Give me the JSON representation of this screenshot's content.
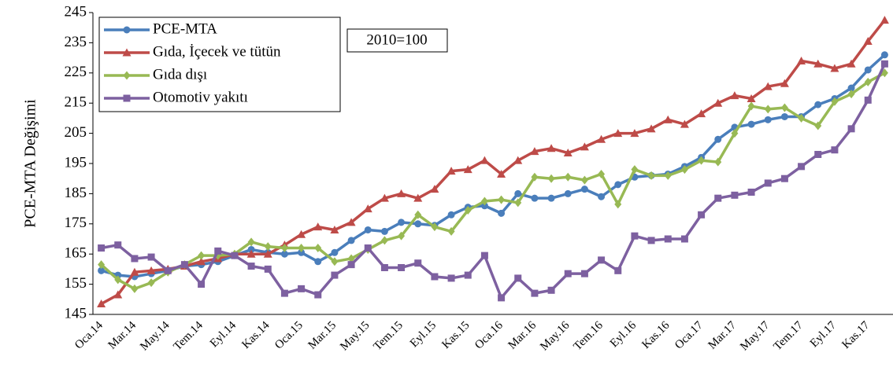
{
  "chart_data": {
    "type": "line",
    "y_label": "PCE-MTA Değişimi",
    "annotation": "2010=100",
    "categories": [
      "Oca.14",
      null,
      "Mar.14",
      null,
      "May.14",
      null,
      "Tem.14",
      null,
      "Eyl.14",
      null,
      "Kas.14",
      null,
      "Oca.15",
      null,
      "Mar.15",
      null,
      "May.15",
      null,
      "Tem.15",
      null,
      "Eyl.15",
      null,
      "Kas.15",
      null,
      "Oca.16",
      null,
      "Mar.16",
      null,
      "May.16",
      null,
      "Tem.16",
      null,
      "Eyl.16",
      null,
      "Kas.16",
      null,
      "Oca.17",
      null,
      "Mar.17",
      null,
      "May.17",
      null,
      "Tem.17",
      null,
      "Eyl.17",
      null,
      "Kas.17",
      null
    ],
    "ylim": [
      145,
      245
    ],
    "yticks": [
      145,
      155,
      165,
      175,
      185,
      195,
      205,
      215,
      225,
      235,
      245
    ],
    "grid": false,
    "legend": "upper left",
    "series": [
      {
        "name": "PCE-MTA",
        "color": "#4a7ebb",
        "marker": "circle",
        "values": [
          159.5,
          158,
          157.5,
          158.5,
          159.5,
          161,
          161.5,
          162.5,
          164.5,
          166.5,
          165.5,
          165,
          165.5,
          162.5,
          165.5,
          169.5,
          173,
          172.5,
          175.5,
          175,
          174.5,
          178,
          180.5,
          181,
          178.5,
          185,
          183.5,
          183.5,
          185,
          186.5,
          184,
          188,
          190.5,
          191,
          191.5,
          194,
          197,
          203,
          207,
          208,
          209.5,
          210.5,
          210.5,
          214.5,
          216.5,
          220,
          226,
          231
        ]
      },
      {
        "name": "Gıda, İçecek ve tütün",
        "color": "#be4b48",
        "marker": "triangle",
        "values": [
          148.5,
          151.5,
          159,
          159.5,
          160,
          161,
          162.5,
          163.5,
          165,
          165,
          165,
          168,
          171.5,
          174,
          173,
          175.5,
          180,
          183.5,
          185,
          183.5,
          186.5,
          192.5,
          193,
          196,
          191.5,
          196,
          199,
          200,
          198.5,
          200.5,
          203,
          205,
          205,
          206.5,
          209.5,
          208,
          211.5,
          215,
          217.5,
          216.5,
          220.5,
          221.5,
          229,
          228,
          226.5,
          228,
          235.5,
          242.5
        ]
      },
      {
        "name": "Gıda dışı",
        "color": "#98b954",
        "marker": "diamond",
        "values": [
          161.5,
          156.5,
          153.5,
          155.5,
          159,
          161.5,
          164.5,
          164.5,
          165,
          169,
          167.5,
          167,
          167,
          167,
          162.5,
          163.5,
          166.5,
          169.5,
          171,
          178,
          174,
          172.5,
          179.5,
          182.5,
          183,
          182,
          190.5,
          190,
          190.5,
          189.5,
          191.5,
          181.5,
          193,
          191,
          191,
          193,
          196,
          195.5,
          205,
          214,
          213,
          213.5,
          210,
          207.5,
          215.5,
          218,
          222,
          225
        ]
      },
      {
        "name": "Otomotiv yakıtı",
        "color": "#7d60a0",
        "marker": "square",
        "values": [
          167,
          168,
          163.5,
          164,
          159.5,
          161.5,
          155,
          166,
          164.5,
          161,
          160,
          152,
          153.5,
          151.5,
          158,
          161.5,
          167,
          160.5,
          160.5,
          162,
          157.5,
          157,
          158,
          164.5,
          150.5,
          157,
          152,
          153,
          158.5,
          158.5,
          163,
          159.5,
          171,
          169.5,
          170,
          170,
          178,
          183.5,
          184.5,
          185.5,
          188.5,
          190,
          194,
          198,
          199.5,
          206.5,
          216,
          228
        ]
      }
    ]
  }
}
